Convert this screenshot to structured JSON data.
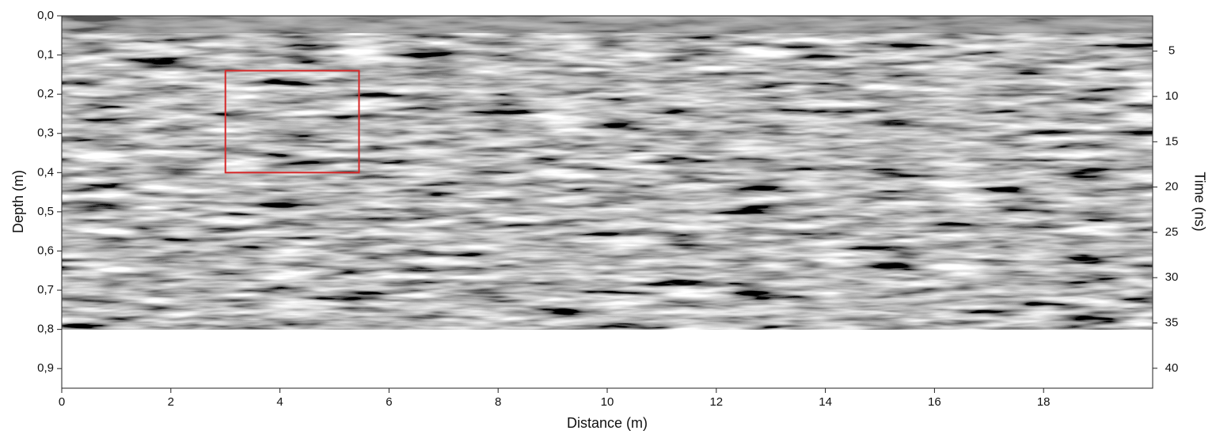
{
  "chart_data": {
    "type": "radargram",
    "xlabel": "Distance (m)",
    "ylabel": "Depth (m)",
    "y2label": "Time (ns)",
    "xlim": [
      0,
      20
    ],
    "xticks": [
      0,
      2,
      4,
      6,
      8,
      10,
      12,
      14,
      16,
      18
    ],
    "ylim": [
      0,
      0.95
    ],
    "yticks": [
      {
        "value": 0,
        "label": "0,0"
      },
      {
        "value": 0.1,
        "label": "0,1"
      },
      {
        "value": 0.2,
        "label": "0,2"
      },
      {
        "value": 0.3,
        "label": "0,3"
      },
      {
        "value": 0.4,
        "label": "0,4"
      },
      {
        "value": 0.5,
        "label": "0,5"
      },
      {
        "value": 0.6,
        "label": "0,6"
      },
      {
        "value": 0.7,
        "label": "0,7"
      },
      {
        "value": 0.8,
        "label": "0,8"
      },
      {
        "value": 0.9,
        "label": "0,9"
      }
    ],
    "y2lim": [
      1.1,
      42.2
    ],
    "y2ticks": [
      5,
      10,
      15,
      20,
      25,
      30,
      35,
      40
    ],
    "image_ylim": [
      0,
      0.8
    ],
    "annotation_box": {
      "x": [
        3,
        5.45
      ],
      "y": [
        0.14,
        0.4
      ],
      "color": "#d62728"
    }
  }
}
